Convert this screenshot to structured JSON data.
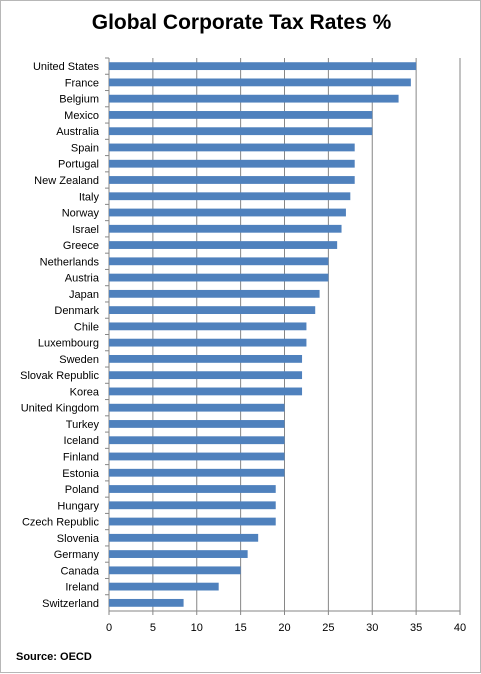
{
  "chart_data": {
    "type": "bar",
    "orientation": "horizontal",
    "title": "Global Corporate Tax Rates %",
    "source": "Source: OECD",
    "categories": [
      "United States",
      "France",
      "Belgium",
      "Mexico",
      "Australia",
      "Spain",
      "Portugal",
      "New Zealand",
      "Italy",
      "Norway",
      "Israel",
      "Greece",
      "Netherlands",
      "Austria",
      "Japan",
      "Denmark",
      "Chile",
      "Luxembourg",
      "Sweden",
      "Slovak Republic",
      "Korea",
      "United Kingdom",
      "Turkey",
      "Iceland",
      "Finland",
      "Estonia",
      "Poland",
      "Hungary",
      "Czech Republic",
      "Slovenia",
      "Germany",
      "Canada",
      "Ireland",
      "Switzerland"
    ],
    "values": [
      35,
      34.4,
      33,
      30,
      30,
      28,
      28,
      28,
      27.5,
      27,
      26.5,
      26,
      25,
      25,
      24,
      23.5,
      22.5,
      22.5,
      22,
      22,
      22,
      20,
      20,
      20,
      20,
      20,
      19,
      19,
      19,
      17,
      15.8,
      15,
      12.5,
      8.5
    ],
    "xlim": [
      0,
      40
    ],
    "xticks": [
      "0",
      "5",
      "10",
      "15",
      "20",
      "25",
      "30",
      "35",
      "40"
    ],
    "grid": true,
    "bar_color": "#4f81bd",
    "grid_color": "#868686"
  }
}
